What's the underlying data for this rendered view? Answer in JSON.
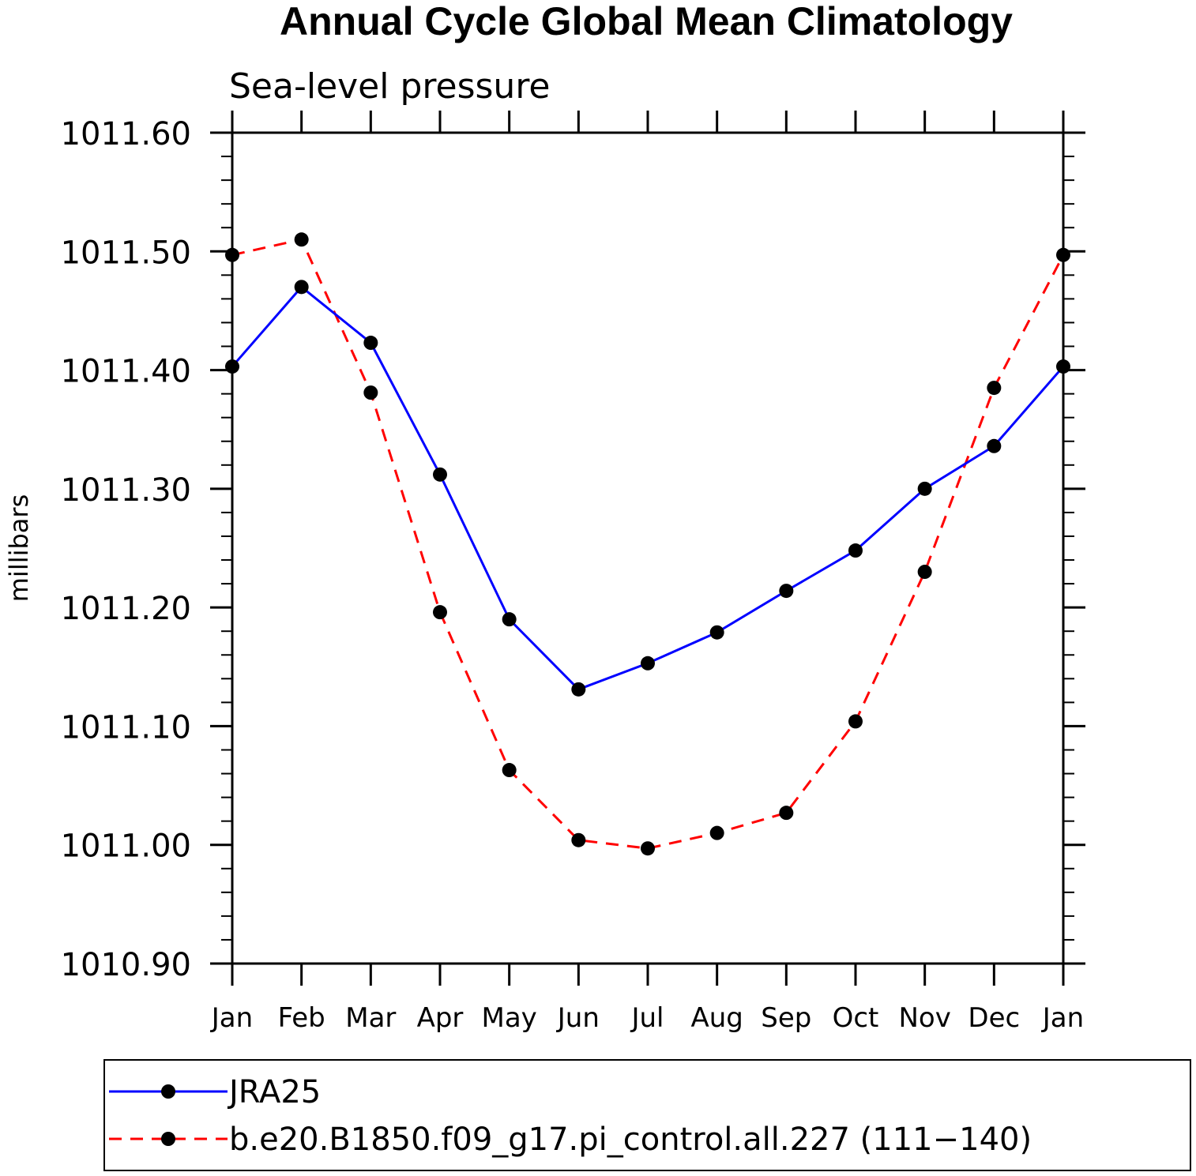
{
  "chart_data": {
    "type": "line",
    "title": "Annual Cycle Global Mean Climatology",
    "subtitle": "Sea-level pressure",
    "xlabel": "",
    "ylabel": "millibars",
    "categories": [
      "Jan",
      "Feb",
      "Mar",
      "Apr",
      "May",
      "Jun",
      "Jul",
      "Aug",
      "Sep",
      "Oct",
      "Nov",
      "Dec",
      "Jan"
    ],
    "ylim": [
      1010.9,
      1011.6
    ],
    "yticks": [
      "1010.90",
      "1011.00",
      "1011.10",
      "1011.20",
      "1011.30",
      "1011.40",
      "1011.50",
      "1011.60"
    ],
    "grid": false,
    "legend_position": "bottom",
    "series": [
      {
        "name": "JRA25",
        "color": "#0000ff",
        "style": "solid",
        "marker": "circle",
        "values": [
          1011.403,
          1011.47,
          1011.423,
          1011.312,
          1011.19,
          1011.131,
          1011.153,
          1011.179,
          1011.214,
          1011.248,
          1011.3,
          1011.336,
          1011.403
        ]
      },
      {
        "name": "b.e20.B1850.f09_g17.pi_control.all.227 (111−140)",
        "color": "#ff0000",
        "style": "dashed",
        "marker": "circle",
        "values": [
          1011.497,
          1011.51,
          1011.381,
          1011.196,
          1011.063,
          1011.004,
          1010.997,
          1011.01,
          1011.027,
          1011.104,
          1011.23,
          1011.385,
          1011.497
        ]
      }
    ]
  }
}
